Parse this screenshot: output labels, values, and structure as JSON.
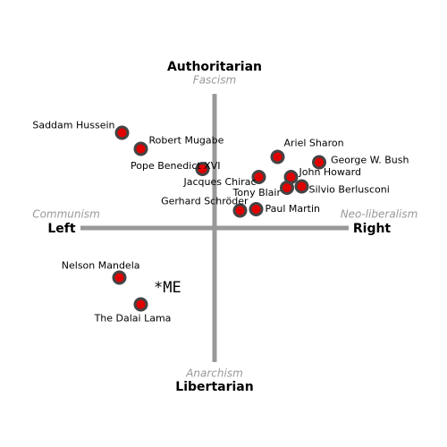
{
  "chart_data": {
    "type": "scatter",
    "axis_labels": {
      "top": "Authoritarian",
      "top_sub": "Fascism",
      "bottom": "Libertarian",
      "bottom_sub": "Anarchism",
      "left": "Left",
      "left_sub": "Communism",
      "right": "Right",
      "right_sub": "Neo-liberalism"
    },
    "annotation": "*ME",
    "xlim": [
      -10,
      10
    ],
    "ylim": [
      -10,
      10
    ],
    "color": "#e00000",
    "points": [
      {
        "label": "Saddam Hussein",
        "x": -6.9,
        "y": 7.1
      },
      {
        "label": "Robert Mugabe",
        "x": -5.5,
        "y": 5.9
      },
      {
        "label": "Pope Benedict XVI",
        "x": -0.9,
        "y": 4.4
      },
      {
        "label": "Ariel Sharon",
        "x": 4.7,
        "y": 5.3
      },
      {
        "label": "George W. Bush",
        "x": 7.8,
        "y": 4.9
      },
      {
        "label": "Jacques Chirac",
        "x": 3.3,
        "y": 3.8
      },
      {
        "label": "John Howard",
        "x": 5.7,
        "y": 3.8
      },
      {
        "label": "Tony Blair",
        "x": 5.4,
        "y": 3.0
      },
      {
        "label": "Silvio Berlusconi",
        "x": 6.5,
        "y": 3.1
      },
      {
        "label": "Gerhard Schröder",
        "x": 1.9,
        "y": 1.3
      },
      {
        "label": "Paul Martin",
        "x": 3.1,
        "y": 1.4
      },
      {
        "label": "Nelson Mandela",
        "x": -7.1,
        "y": -3.7
      },
      {
        "label": "The Dalai Lama",
        "x": -5.5,
        "y": -5.7
      }
    ]
  }
}
